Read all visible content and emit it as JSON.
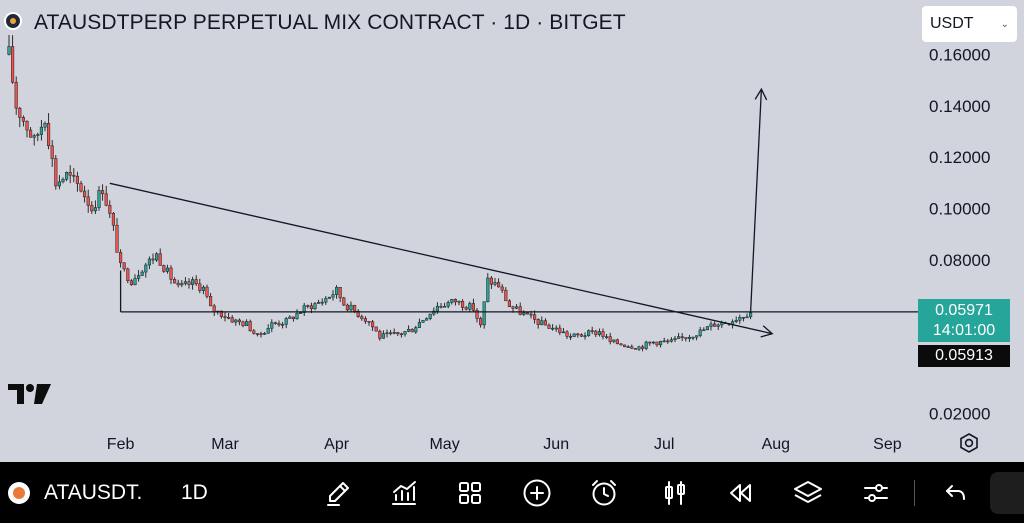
{
  "header": {
    "title": "ATAUSDTPERP PERPETUAL MIX CONTRACT · 1D · BITGET",
    "currency_select": "USDT",
    "coin_icon": "ata-coin-icon"
  },
  "chart_data": {
    "type": "candlestick",
    "title": "ATAUSDTPERP PERPETUAL MIX CONTRACT · 1D · BITGET",
    "x_labels": [
      "Feb",
      "Mar",
      "Apr",
      "May",
      "Jun",
      "Jul",
      "Aug",
      "Sep"
    ],
    "y_tick_labels": [
      "0.16000",
      "0.14000",
      "0.12000",
      "0.10000",
      "0.08000",
      "0.02000"
    ],
    "y_ticks": [
      0.16,
      0.14,
      0.12,
      0.1,
      0.08,
      0.02
    ],
    "ylim": [
      0.0145,
      0.1672
    ],
    "close_path": [
      [
        "2024-01-01",
        0.16
      ],
      [
        "2024-01-03",
        0.14
      ],
      [
        "2024-01-06",
        0.132
      ],
      [
        "2024-01-08",
        0.126
      ],
      [
        "2024-01-11",
        0.136
      ],
      [
        "2024-01-14",
        0.11
      ],
      [
        "2024-01-17",
        0.113
      ],
      [
        "2024-01-21",
        0.108
      ],
      [
        "2024-01-24",
        0.1
      ],
      [
        "2024-01-27",
        0.108
      ],
      [
        "2024-01-30",
        0.092
      ],
      [
        "2024-02-01",
        0.077
      ],
      [
        "2024-02-04",
        0.072
      ],
      [
        "2024-02-07",
        0.077
      ],
      [
        "2024-02-11",
        0.082
      ],
      [
        "2024-02-14",
        0.075
      ],
      [
        "2024-02-17",
        0.069
      ],
      [
        "2024-02-21",
        0.071
      ],
      [
        "2024-02-24",
        0.069
      ],
      [
        "2024-02-26",
        0.061
      ],
      [
        "2024-02-29",
        0.059
      ],
      [
        "2024-03-04",
        0.056
      ],
      [
        "2024-03-07",
        0.055
      ],
      [
        "2024-03-10",
        0.05
      ],
      [
        "2024-03-14",
        0.055
      ],
      [
        "2024-03-18",
        0.056
      ],
      [
        "2024-03-23",
        0.061
      ],
      [
        "2024-03-28",
        0.064
      ],
      [
        "2024-04-01",
        0.068
      ],
      [
        "2024-04-03",
        0.063
      ],
      [
        "2024-04-06",
        0.06
      ],
      [
        "2024-04-10",
        0.056
      ],
      [
        "2024-04-13",
        0.05
      ],
      [
        "2024-04-18",
        0.051
      ],
      [
        "2024-04-22",
        0.053
      ],
      [
        "2024-04-25",
        0.057
      ],
      [
        "2024-04-29",
        0.062
      ],
      [
        "2024-05-04",
        0.064
      ],
      [
        "2024-05-09",
        0.061
      ],
      [
        "2024-05-11",
        0.054
      ],
      [
        "2024-05-13",
        0.072
      ],
      [
        "2024-05-16",
        0.07
      ],
      [
        "2024-05-19",
        0.062
      ],
      [
        "2024-05-24",
        0.058
      ],
      [
        "2024-05-28",
        0.055
      ],
      [
        "2024-06-01",
        0.053
      ],
      [
        "2024-06-05",
        0.05
      ],
      [
        "2024-06-09",
        0.051
      ],
      [
        "2024-06-13",
        0.052
      ],
      [
        "2024-06-16",
        0.048
      ],
      [
        "2024-06-20",
        0.047
      ],
      [
        "2024-06-24",
        0.046
      ],
      [
        "2024-06-28",
        0.048
      ],
      [
        "2024-07-03",
        0.048
      ],
      [
        "2024-07-07",
        0.05
      ],
      [
        "2024-07-11",
        0.052
      ],
      [
        "2024-07-15",
        0.055
      ],
      [
        "2024-07-19",
        0.056
      ],
      [
        "2024-07-22",
        0.058
      ],
      [
        "2024-07-25",
        0.0597
      ]
    ],
    "annotations": {
      "descending_trendline": [
        [
          "2024-01-29",
          0.1098
        ],
        [
          "2024-07-31",
          0.0512
        ]
      ],
      "horizontal_support": [
        [
          "2024-02-01",
          0.0597
        ],
        [
          "2024-09-30",
          0.0597
        ]
      ],
      "box_left_edge": [
        [
          "2024-02-01",
          0.0758
        ],
        [
          "2024-02-01",
          0.0597
        ]
      ],
      "projection_arrow": [
        [
          "2024-07-25",
          0.0597
        ],
        [
          "2024-07-28",
          0.1465
        ]
      ]
    },
    "last_price": "0.05971",
    "countdown": "14:01:00",
    "bid_price": "0.05913",
    "grid": false,
    "colors": {
      "up": "#26a69a",
      "down": "#ef5350",
      "line": "#131722"
    }
  },
  "branding": {
    "logo_text": "TV"
  },
  "toolbar": {
    "symbol": "ATAUSDT.",
    "interval": "1D",
    "icons": [
      "brush-icon",
      "indicators-icon",
      "layout-icon",
      "add-icon",
      "alert-icon",
      "chart-type-icon",
      "replay-icon",
      "layers-icon",
      "settings-sliders-icon",
      "undo-icon"
    ]
  }
}
